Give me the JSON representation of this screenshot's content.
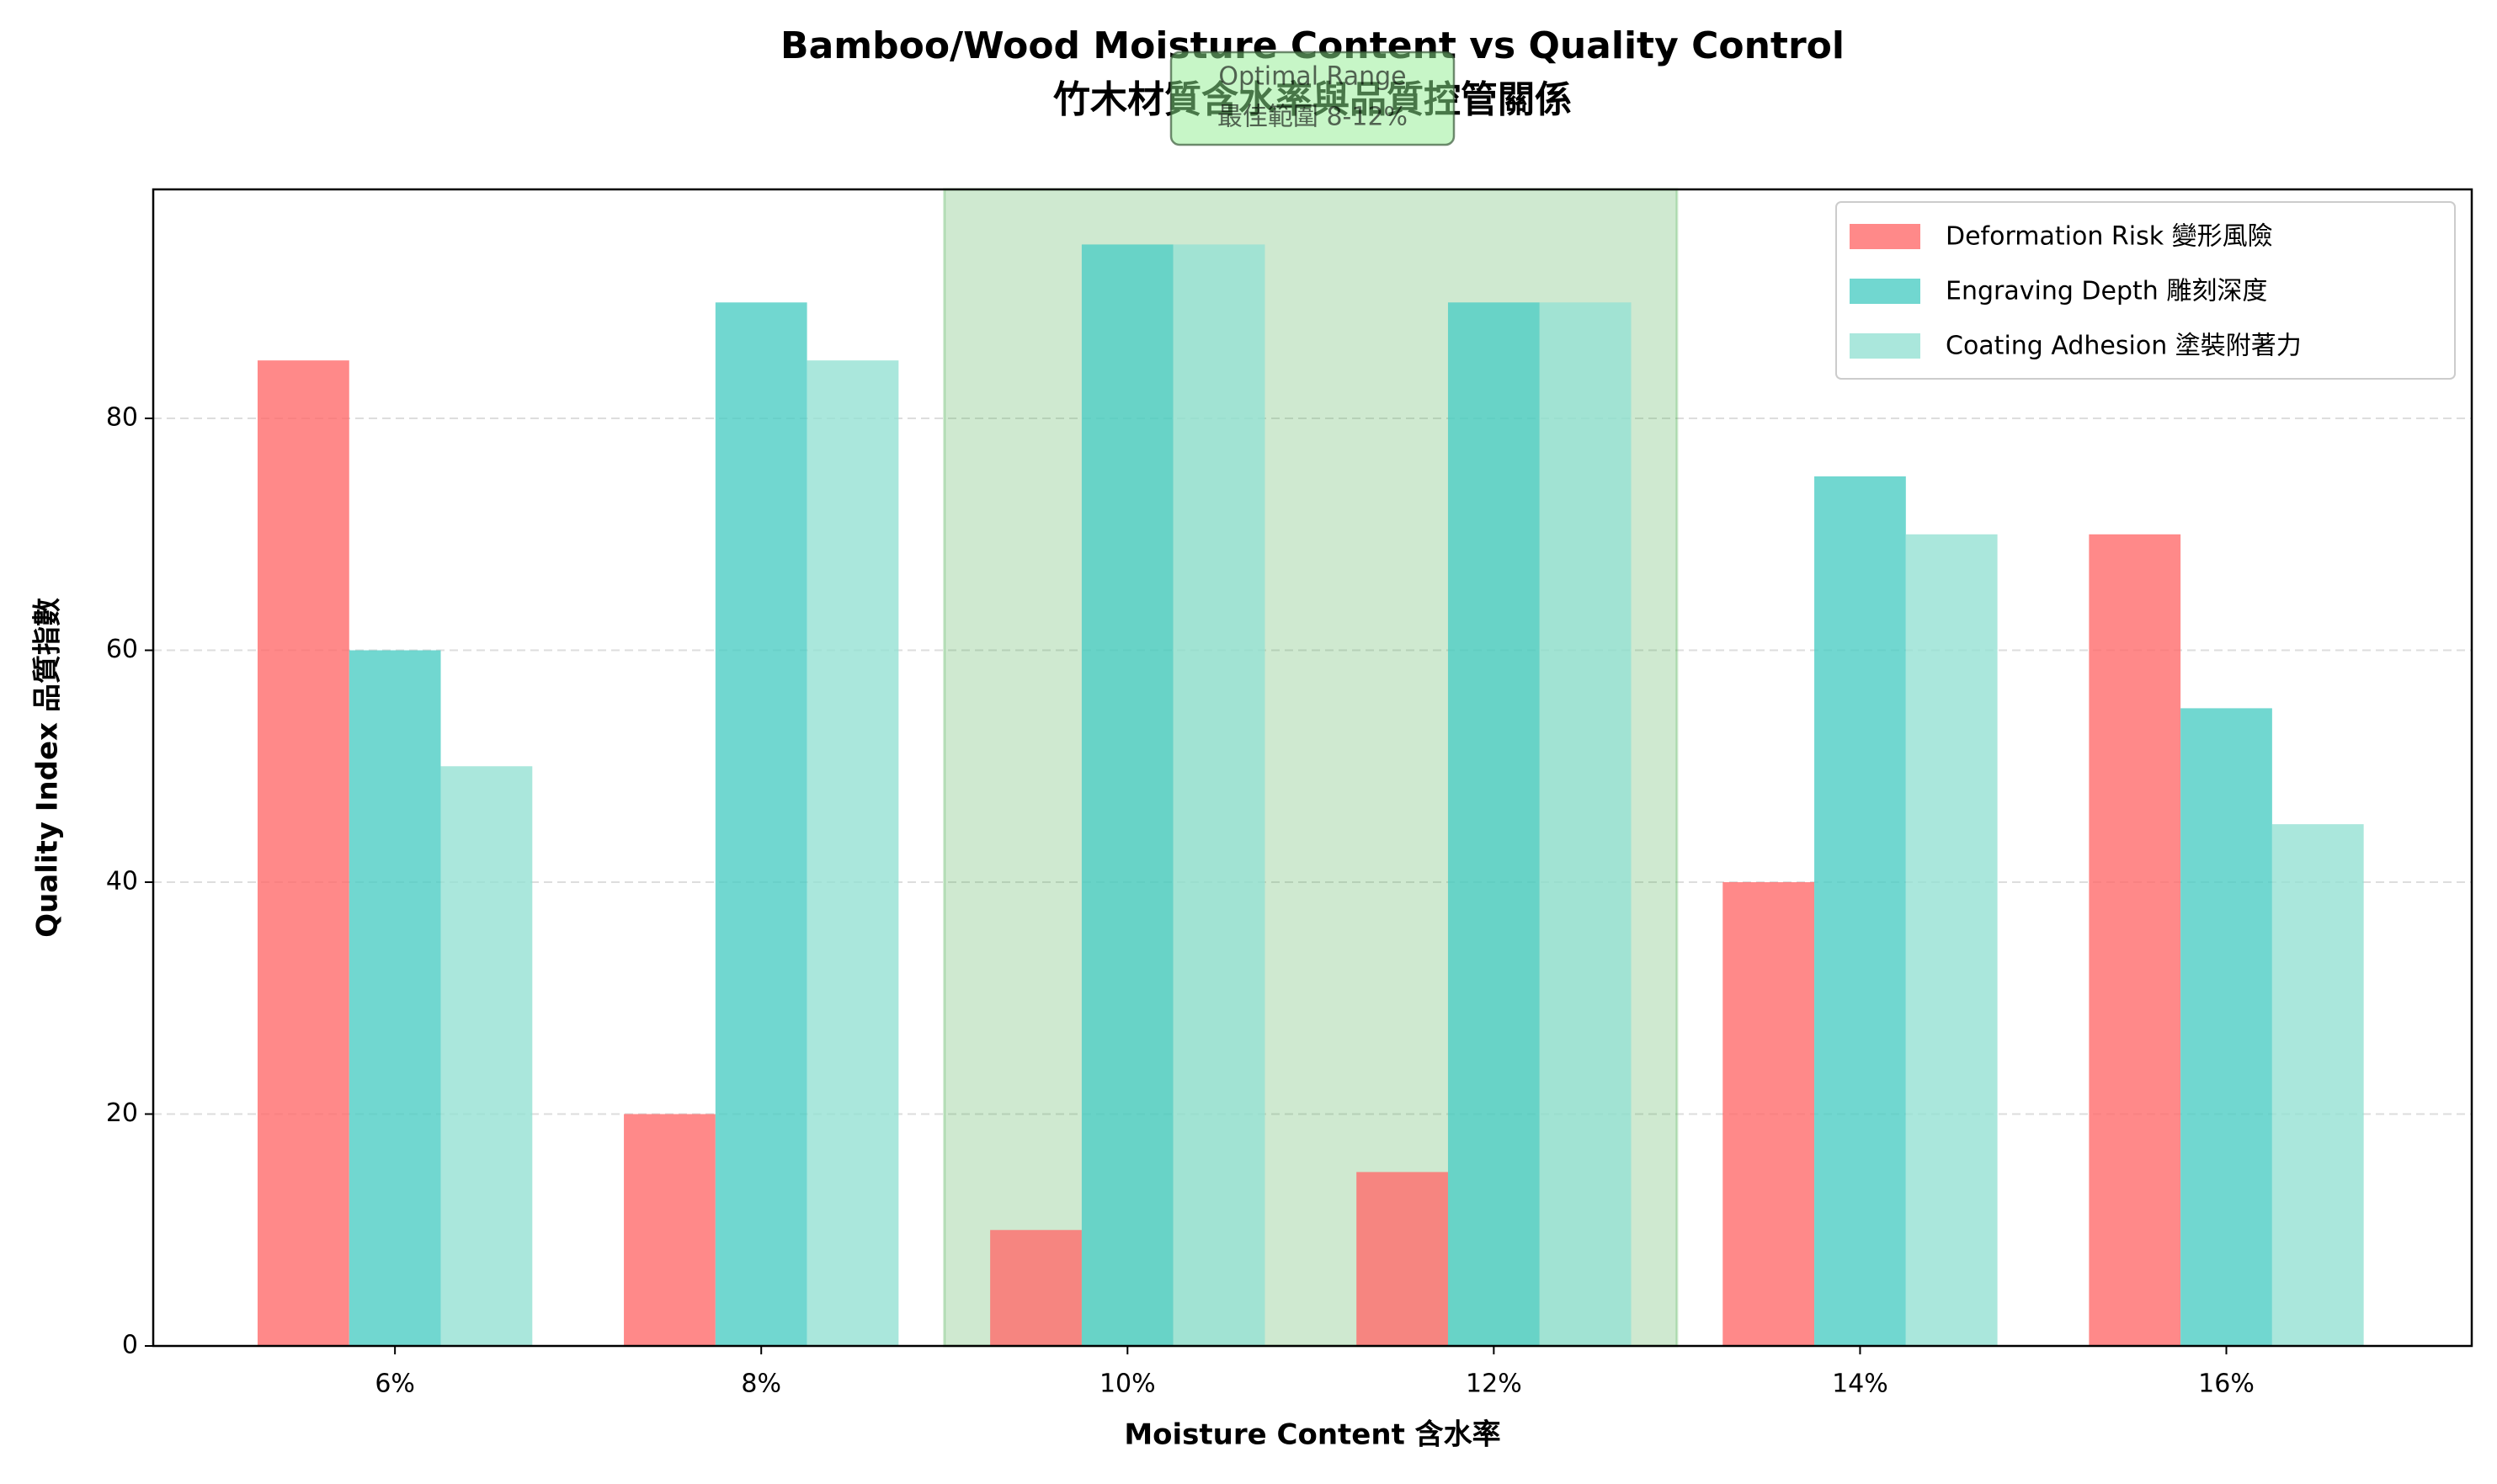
{
  "chart_data": {
    "type": "bar",
    "title": "Bamboo/Wood Moisture Content vs Quality Control",
    "subtitle": "竹木材質含水率與品質控管關係",
    "x_label": "Moisture Content 含水率",
    "y_label": "Quality Index 品質指數",
    "categories": [
      "6%",
      "8%",
      "10%",
      "12%",
      "14%",
      "16%"
    ],
    "series": [
      {
        "name": "Deformation Risk 變形風險",
        "color": "#FF6B6B",
        "values": [
          85,
          20,
          10,
          15,
          40,
          70
        ]
      },
      {
        "name": "Engraving Depth 雕刻深度",
        "color": "#4ECDC4",
        "values": [
          60,
          90,
          95,
          90,
          75,
          55
        ]
      },
      {
        "name": "Coating Adhesion 塗裝附著力",
        "color": "#95E1D3",
        "values": [
          50,
          85,
          95,
          90,
          70,
          45
        ]
      }
    ],
    "annotation": [
      "Optimal Range",
      "最佳範圍 8-12%"
    ],
    "ylim": [
      0,
      99.75
    ],
    "yticks": [
      0,
      20,
      40,
      60,
      80
    ],
    "grid": true,
    "legend": "upper right"
  }
}
